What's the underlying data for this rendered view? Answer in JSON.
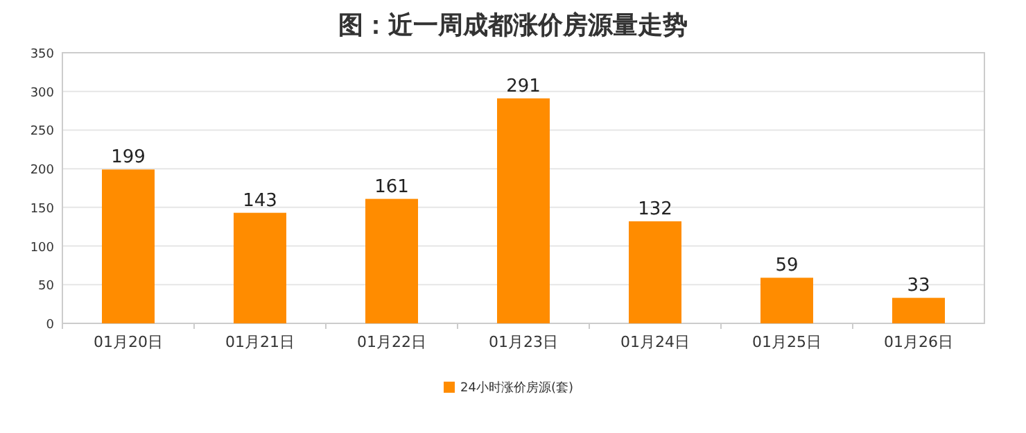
{
  "chart_data": {
    "type": "bar",
    "title": "图：近一周成都涨价房源量走势",
    "categories": [
      "01月20日",
      "01月21日",
      "01月22日",
      "01月23日",
      "01月24日",
      "01月25日",
      "01月26日"
    ],
    "series": [
      {
        "name": "24小时涨价房源(套)",
        "color": "#ff8c00",
        "values": [
          199,
          143,
          161,
          291,
          132,
          59,
          33
        ]
      }
    ],
    "ylim": [
      0,
      350
    ],
    "yticks": [
      0,
      50,
      100,
      150,
      200,
      250,
      300,
      350
    ],
    "grid": "y",
    "legend": "bottom",
    "data_labels": true
  }
}
